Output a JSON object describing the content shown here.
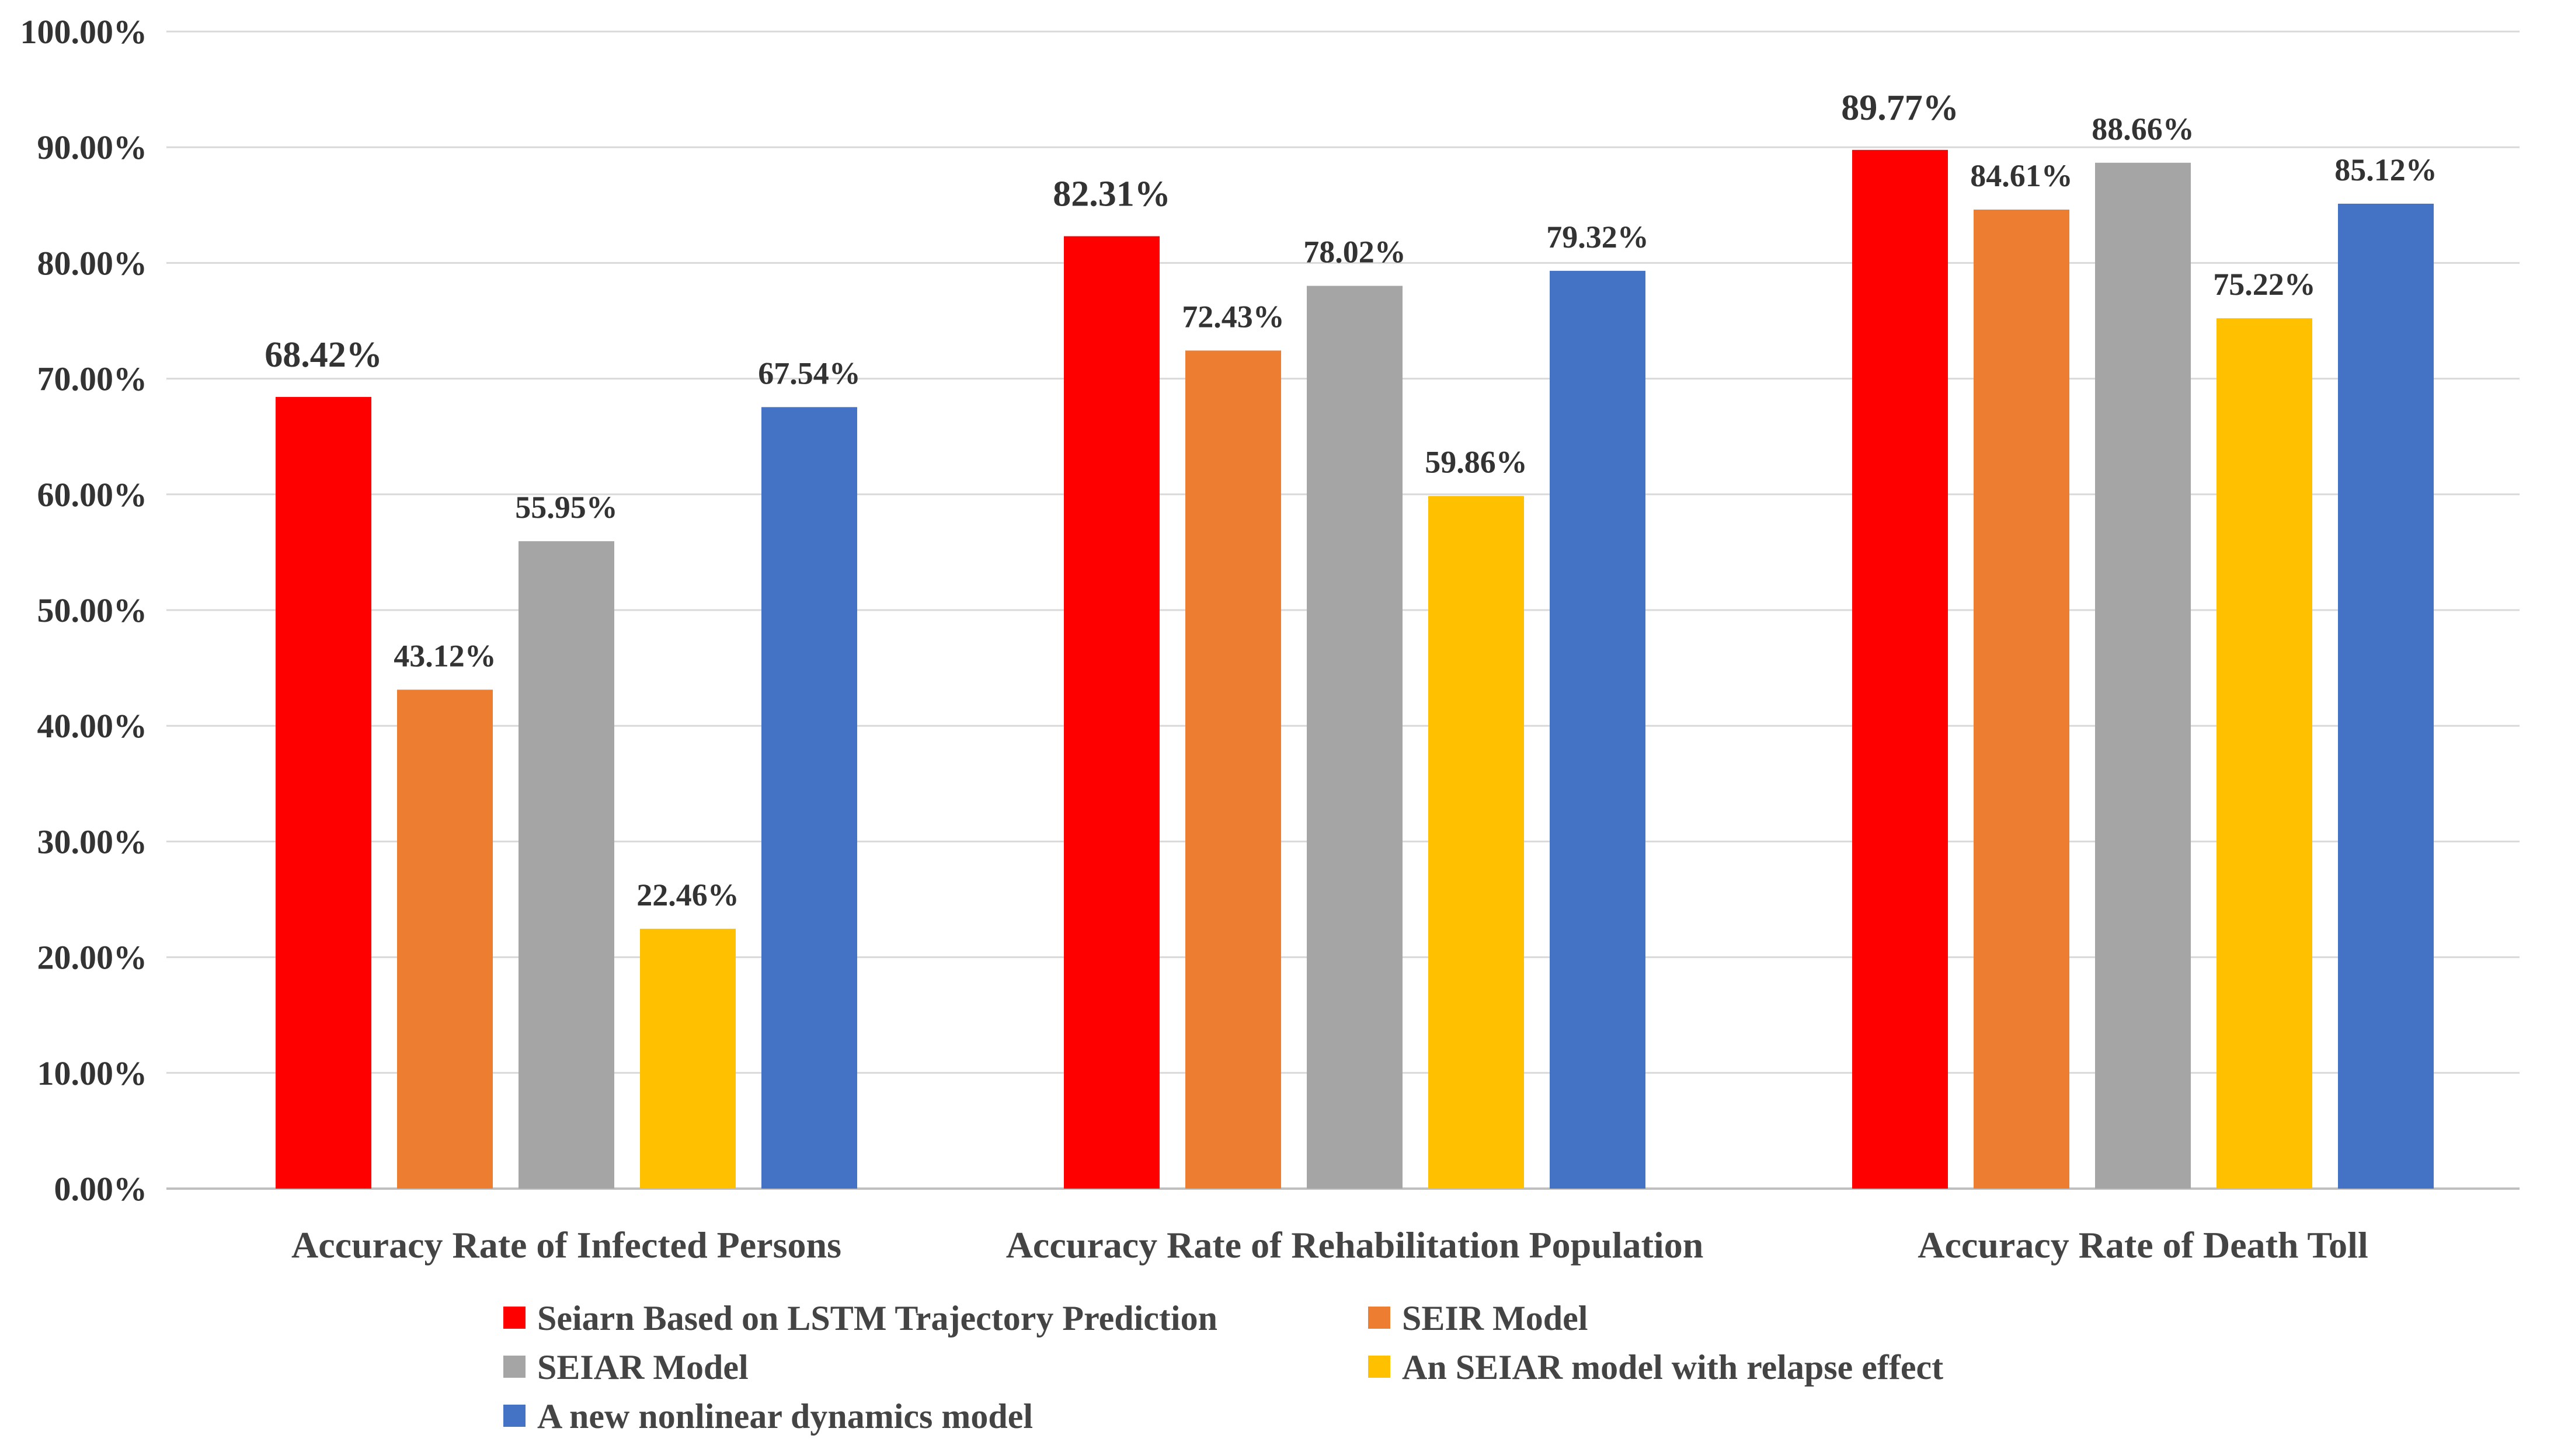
{
  "chart_data": {
    "type": "bar",
    "title": "",
    "xlabel": "",
    "ylabel": "",
    "ylim": [
      0,
      100
    ],
    "grid": true,
    "legend_position": "bottom",
    "y_ticks": [
      "0.00%",
      "10.00%",
      "20.00%",
      "30.00%",
      "40.00%",
      "50.00%",
      "60.00%",
      "70.00%",
      "80.00%",
      "90.00%",
      "100.00%"
    ],
    "categories": [
      "Accuracy Rate of Infected Persons",
      "Accuracy Rate of Rehabilitation Population",
      "Accuracy Rate of Death Toll"
    ],
    "series": [
      {
        "name": "Seiarn Based on LSTM Trajectory Prediction",
        "color": "#FF0000",
        "values": [
          68.42,
          82.31,
          89.77
        ],
        "labels": [
          "68.42%",
          "82.31%",
          "89.77%"
        ]
      },
      {
        "name": "SEIR Model",
        "color": "#ED7D31",
        "values": [
          43.12,
          72.43,
          84.61
        ],
        "labels": [
          "43.12%",
          "72.43%",
          "84.61%"
        ]
      },
      {
        "name": "SEIAR Model",
        "color": "#A5A5A5",
        "values": [
          55.95,
          78.02,
          88.66
        ],
        "labels": [
          "55.95%",
          "78.02%",
          "88.66%"
        ]
      },
      {
        "name": "An SEIAR model with relapse effect",
        "color": "#FFC000",
        "values": [
          22.46,
          59.86,
          75.22
        ],
        "labels": [
          "22.46%",
          "59.86%",
          "75.22%"
        ]
      },
      {
        "name": "A new nonlinear dynamics model",
        "color": "#4472C4",
        "values": [
          67.54,
          79.32,
          85.12
        ],
        "labels": [
          "67.54%",
          "79.32%",
          "85.12%"
        ]
      }
    ]
  }
}
